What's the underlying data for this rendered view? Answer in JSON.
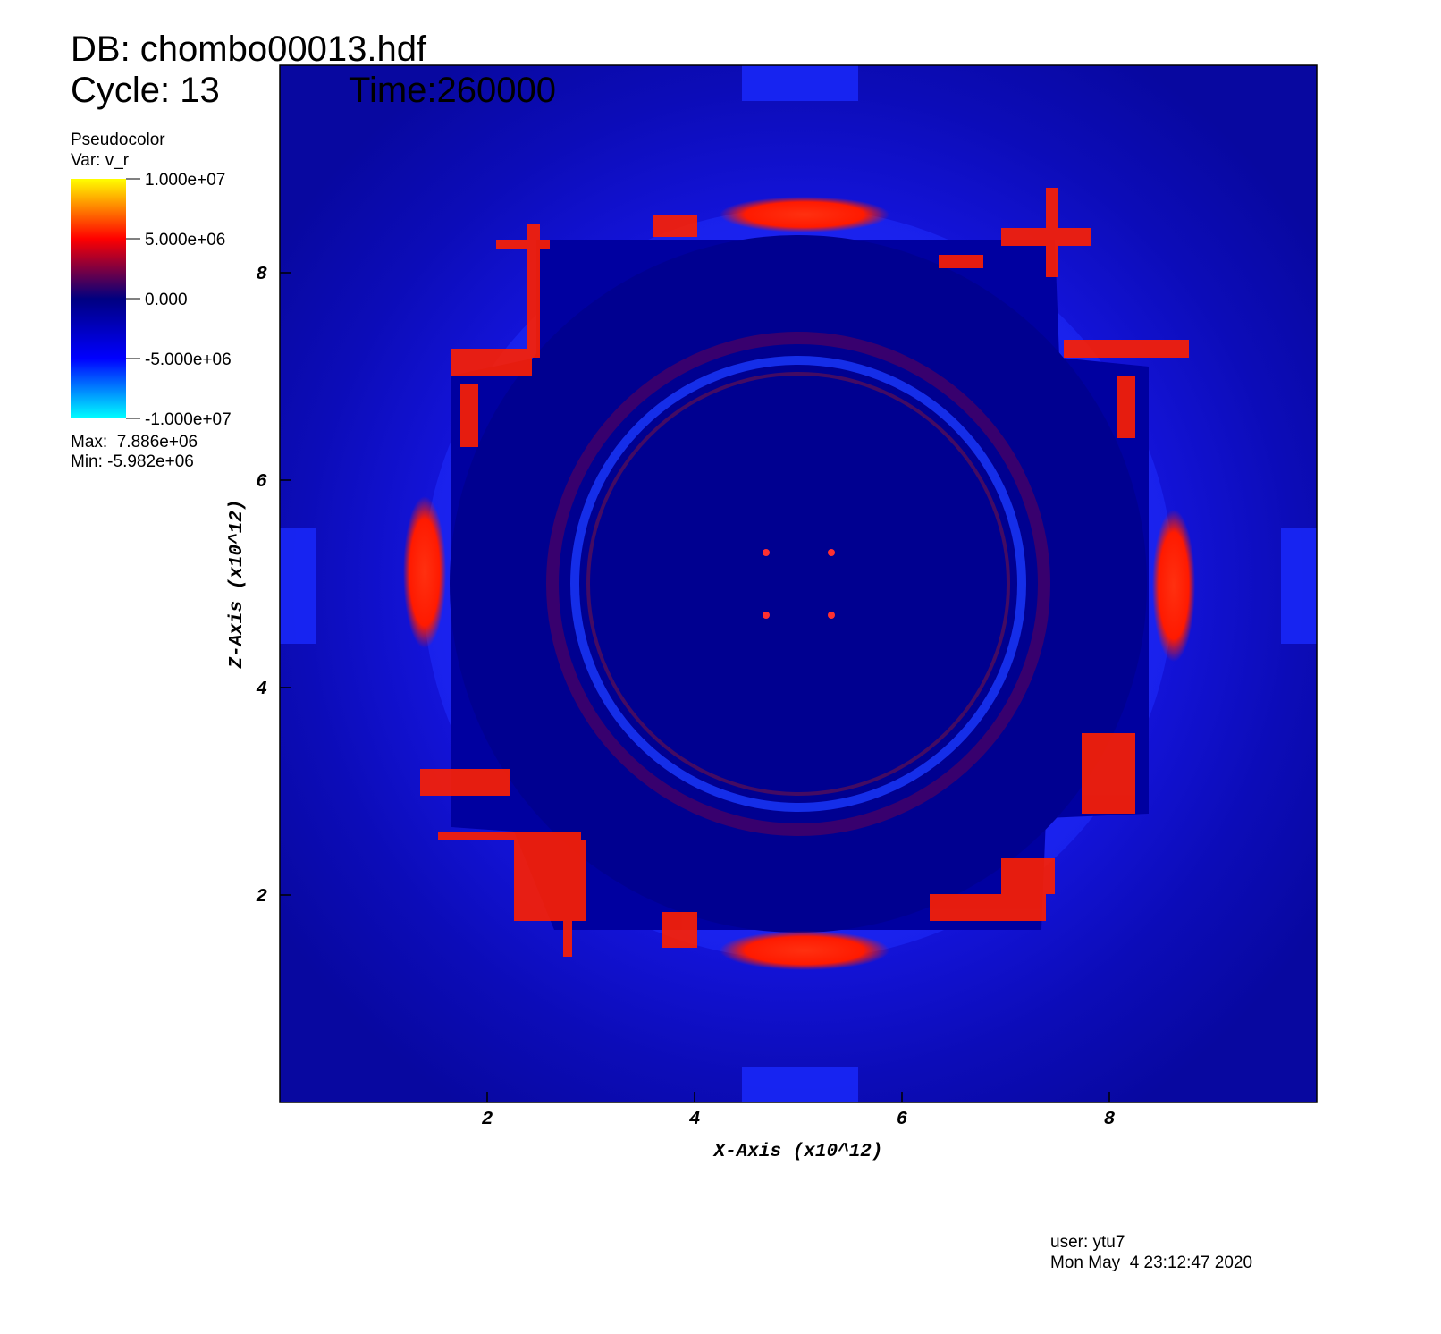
{
  "chart_data": {
    "type": "pseudocolor",
    "title": "DB: chombo00013.hdf",
    "cycle": "Cycle: 13",
    "time": "Time:260000",
    "legend": {
      "plot": "Pseudocolor",
      "var": "Var: v_r",
      "clim": [
        -10000000,
        10000000
      ],
      "ticks": [
        {
          "value": 10000000,
          "label": "1.000e+07"
        },
        {
          "value": 5000000,
          "label": "5.000e+06"
        },
        {
          "value": 0,
          "label": "0.000"
        },
        {
          "value": -5000000,
          "label": "-5.000e+06"
        },
        {
          "value": -10000000,
          "label": "-1.000e+07"
        }
      ],
      "colors": [
        "#00ffff",
        "#0000ff",
        "#000080",
        "#ff0000",
        "#ffff00"
      ],
      "max": "Max:  7.886e+06",
      "min": "Min: -5.982e+06"
    },
    "xlabel": "X-Axis (x10^12)",
    "ylabel": "Z-Axis (x10^12)",
    "xlim": [
      0,
      10
    ],
    "ylim": [
      0,
      10
    ],
    "xticks": [
      2,
      4,
      6,
      8
    ],
    "yticks": [
      2,
      4,
      6,
      8
    ],
    "user": "user: ytu7",
    "date": "Mon May  4 23:12:47 2020"
  }
}
